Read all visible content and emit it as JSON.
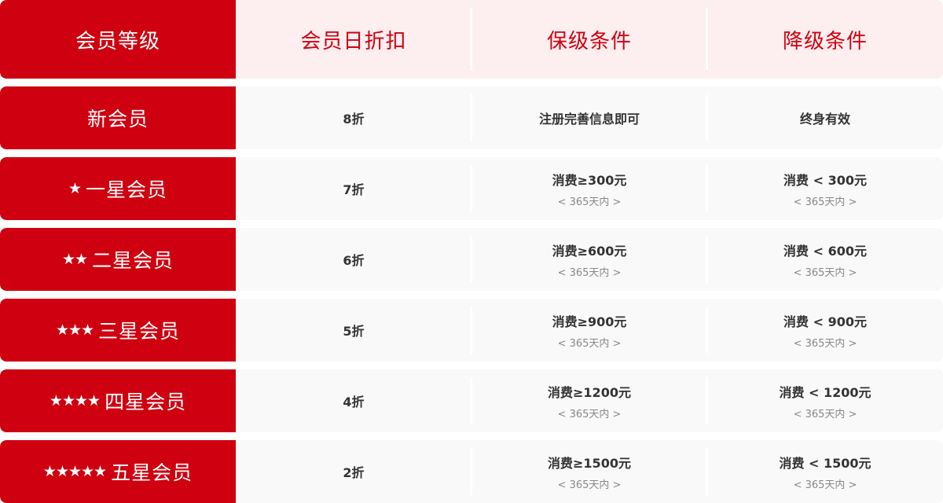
{
  "colors": {
    "accent": "#cf000f",
    "header_bg": "#fdeef0",
    "row_bg": "#f9f9f9"
  },
  "header": {
    "level": "会员等级",
    "discount": "会员日折扣",
    "keep": "保级条件",
    "downgrade": "降级条件"
  },
  "rows": [
    {
      "stars": "",
      "name": "新会员",
      "discount": "8折",
      "keep": "注册完善信息即可",
      "keep_sub": "",
      "down": "终身有效",
      "down_sub": ""
    },
    {
      "stars": "★",
      "name": "一星会员",
      "discount": "7折",
      "keep": "消费≥300元",
      "keep_sub": "< 365天内 >",
      "down": "消费 < 300元",
      "down_sub": "< 365天内 >"
    },
    {
      "stars": "★★",
      "name": "二星会员",
      "discount": "6折",
      "keep": "消费≥600元",
      "keep_sub": "< 365天内 >",
      "down": "消费 < 600元",
      "down_sub": "< 365天内 >"
    },
    {
      "stars": "★★★",
      "name": "三星会员",
      "discount": "5折",
      "keep": "消费≥900元",
      "keep_sub": "< 365天内 >",
      "down": "消费 < 900元",
      "down_sub": "< 365天内 >"
    },
    {
      "stars": "★★★★",
      "name": "四星会员",
      "discount": "4折",
      "keep": "消费≥1200元",
      "keep_sub": "< 365天内 >",
      "down": "消费 < 1200元",
      "down_sub": "< 365天内 >"
    },
    {
      "stars": "★★★★★",
      "name": "五星会员",
      "discount": "2折",
      "keep": "消费≥1500元",
      "keep_sub": "< 365天内 >",
      "down": "消费 < 1500元",
      "down_sub": "< 365天内 >"
    }
  ]
}
